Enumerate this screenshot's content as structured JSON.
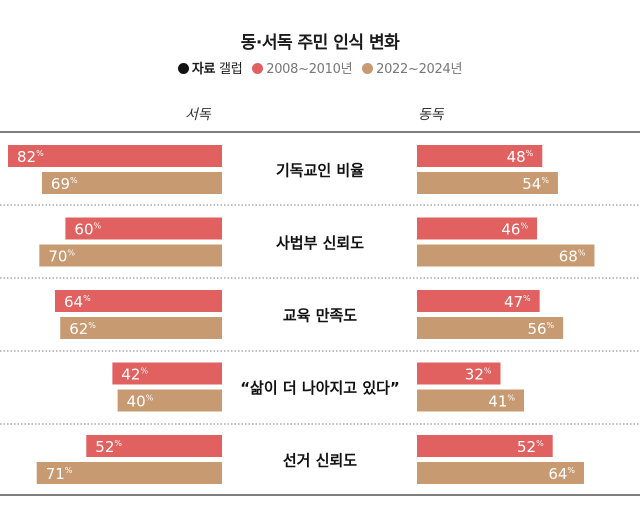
{
  "chart_data": {
    "type": "bar",
    "title": "동·서독 주민 인식 변화",
    "legend": {
      "source_label": "자료",
      "source_name": "갤럽",
      "series_labels": [
        "2008~2010년",
        "2022~2024년"
      ]
    },
    "panels": [
      "서독",
      "동독"
    ],
    "categories": [
      "기독교인 비율",
      "사법부 신뢰도",
      "교육 만족도",
      "“삶이 더 나아지고 있다”",
      "선거 신뢰도"
    ],
    "series": [
      {
        "name": "2008~2010년",
        "color": "#e0615f",
        "west": [
          82,
          60,
          64,
          42,
          52
        ],
        "east": [
          48,
          46,
          47,
          32,
          52
        ]
      },
      {
        "name": "2022~2024년",
        "color": "#c79a72",
        "west": [
          69,
          70,
          62,
          40,
          71
        ],
        "east": [
          54,
          68,
          56,
          41,
          64
        ]
      }
    ],
    "value_suffix": "%",
    "xlim": [
      0,
      100
    ]
  }
}
